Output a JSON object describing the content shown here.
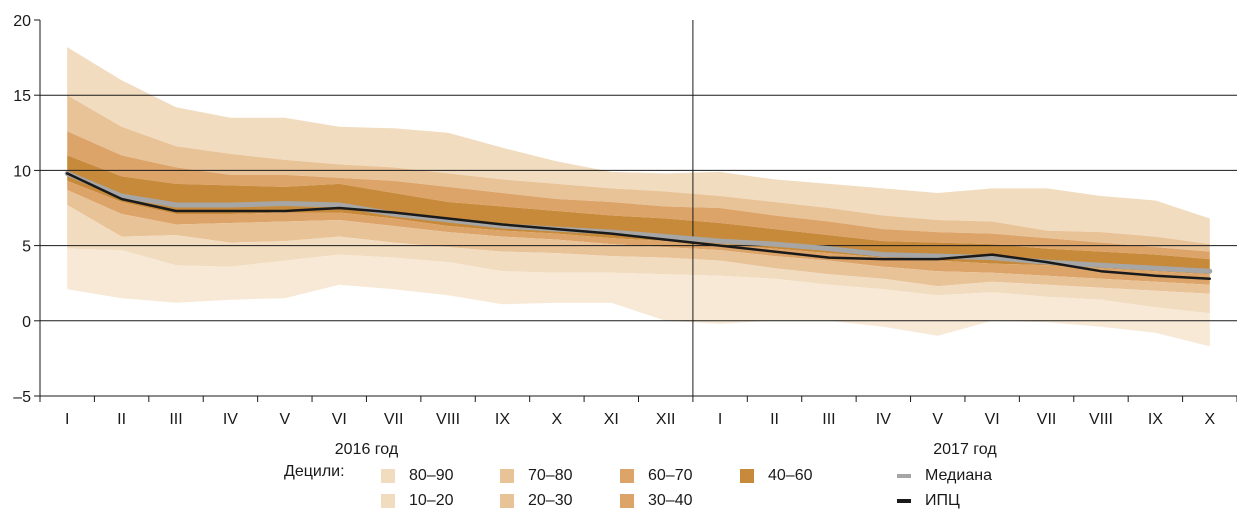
{
  "chart_data": {
    "type": "area",
    "title": "",
    "xlabel": "",
    "ylabel": "",
    "ylim": [
      -5,
      20
    ],
    "yticks": [
      -5,
      0,
      5,
      10,
      15,
      20
    ],
    "grid": true,
    "categories": [
      "I",
      "II",
      "III",
      "IV",
      "V",
      "VI",
      "VII",
      "VIII",
      "IX",
      "X",
      "XI",
      "XII",
      "I",
      "II",
      "III",
      "IV",
      "V",
      "VI",
      "VII",
      "VIII",
      "IX",
      "X"
    ],
    "year_labels": [
      {
        "label": "2016 год",
        "center_index": 5.5
      },
      {
        "label": "2017 год",
        "center_index": 16.5
      }
    ],
    "bands": [
      {
        "name": "80–90",
        "color": "#f2dcc0",
        "lower": [
          15.0,
          12.9,
          11.6,
          11.1,
          10.7,
          10.4,
          10.2,
          9.8,
          9.4,
          9.1,
          8.8,
          8.6,
          8.3,
          7.9,
          7.5,
          7.0,
          6.7,
          6.6,
          6.0,
          5.9,
          5.6,
          5.1
        ],
        "upper": [
          18.2,
          16.0,
          14.2,
          13.5,
          13.5,
          12.9,
          12.8,
          12.5,
          11.5,
          10.6,
          9.9,
          9.8,
          9.9,
          9.4,
          9.1,
          8.8,
          8.5,
          8.8,
          8.8,
          8.3,
          8.0,
          6.8
        ]
      },
      {
        "name": "70–80",
        "color": "#e9c398",
        "lower": [
          12.6,
          11.0,
          10.2,
          9.7,
          9.7,
          9.5,
          9.3,
          8.9,
          8.5,
          8.1,
          7.9,
          7.6,
          7.5,
          7.0,
          6.6,
          6.1,
          5.9,
          5.8,
          5.5,
          5.2,
          4.9,
          4.6
        ],
        "upper": [
          15.0,
          12.9,
          11.6,
          11.1,
          10.7,
          10.4,
          10.2,
          9.8,
          9.4,
          9.1,
          8.8,
          8.6,
          8.3,
          7.9,
          7.5,
          7.0,
          6.7,
          6.6,
          6.0,
          5.9,
          5.6,
          5.1
        ]
      },
      {
        "name": "60–70",
        "color": "#dda46a",
        "lower": [
          11.0,
          9.6,
          9.1,
          9.0,
          8.9,
          9.1,
          8.5,
          7.9,
          7.6,
          7.3,
          7.0,
          6.8,
          6.5,
          6.1,
          5.7,
          5.3,
          5.2,
          5.1,
          4.8,
          4.6,
          4.4,
          4.1
        ],
        "upper": [
          12.6,
          11.0,
          10.2,
          9.7,
          9.7,
          9.5,
          9.3,
          8.9,
          8.5,
          8.1,
          7.9,
          7.6,
          7.5,
          7.0,
          6.6,
          6.1,
          5.9,
          5.8,
          5.5,
          5.2,
          4.9,
          4.6
        ]
      },
      {
        "name": "40–60",
        "color": "#c78a3a",
        "lower": [
          9.3,
          7.9,
          7.1,
          7.1,
          7.2,
          7.2,
          6.8,
          6.3,
          6.0,
          5.8,
          5.5,
          5.3,
          5.1,
          4.8,
          4.5,
          4.2,
          4.0,
          3.8,
          3.7,
          3.5,
          3.3,
          3.1
        ],
        "upper": [
          11.0,
          9.6,
          9.1,
          9.0,
          8.9,
          9.1,
          8.5,
          7.9,
          7.6,
          7.3,
          7.0,
          6.8,
          6.5,
          6.1,
          5.7,
          5.3,
          5.2,
          5.1,
          4.8,
          4.6,
          4.4,
          4.1
        ]
      },
      {
        "name": "30–40",
        "color": "#dda46a",
        "lower": [
          8.7,
          7.1,
          6.4,
          6.5,
          6.6,
          6.7,
          6.3,
          5.9,
          5.6,
          5.4,
          5.1,
          4.9,
          4.7,
          4.3,
          4.0,
          3.6,
          3.3,
          3.2,
          3.0,
          2.8,
          2.6,
          2.4
        ],
        "upper": [
          9.3,
          7.9,
          7.1,
          7.1,
          7.2,
          7.2,
          6.8,
          6.3,
          6.0,
          5.8,
          5.5,
          5.3,
          5.1,
          4.8,
          4.5,
          4.2,
          4.0,
          3.8,
          3.7,
          3.5,
          3.3,
          3.1
        ]
      },
      {
        "name": "20–30",
        "color": "#e9c398",
        "lower": [
          7.7,
          5.6,
          5.7,
          5.2,
          5.3,
          5.6,
          5.2,
          4.9,
          4.6,
          4.5,
          4.3,
          4.2,
          4.0,
          3.5,
          3.1,
          2.8,
          2.3,
          2.6,
          2.4,
          2.2,
          2.0,
          1.8
        ],
        "upper": [
          8.7,
          7.1,
          6.4,
          6.5,
          6.6,
          6.7,
          6.3,
          5.9,
          5.6,
          5.4,
          5.1,
          4.9,
          4.7,
          4.3,
          4.0,
          3.6,
          3.3,
          3.2,
          3.0,
          2.8,
          2.6,
          2.4
        ]
      },
      {
        "name": "10–20",
        "color": "#f2dcc0",
        "lower": [
          4.8,
          4.7,
          3.7,
          3.6,
          4.0,
          4.4,
          4.2,
          3.9,
          3.3,
          3.2,
          3.2,
          3.1,
          3.0,
          2.8,
          2.4,
          2.1,
          1.7,
          1.9,
          1.6,
          1.4,
          0.9,
          0.5
        ],
        "upper": [
          7.7,
          5.6,
          5.7,
          5.2,
          5.3,
          5.6,
          5.2,
          4.9,
          4.6,
          4.5,
          4.3,
          4.2,
          4.0,
          3.5,
          3.1,
          2.8,
          2.3,
          2.6,
          2.4,
          2.2,
          2.0,
          1.8
        ]
      },
      {
        "name": "",
        "color": "#f7e9d6",
        "lower": [
          2.1,
          1.5,
          1.2,
          1.4,
          1.5,
          2.4,
          2.1,
          1.7,
          1.1,
          1.2,
          1.2,
          0.0,
          -0.2,
          0.0,
          0.0,
          -0.4,
          -1.0,
          0.0,
          -0.1,
          -0.4,
          -0.8,
          -1.7
        ],
        "upper": [
          4.8,
          4.7,
          3.7,
          3.6,
          4.0,
          4.4,
          4.2,
          3.9,
          3.3,
          3.2,
          3.2,
          3.1,
          3.0,
          2.8,
          2.4,
          2.1,
          1.7,
          1.9,
          1.6,
          1.4,
          0.9,
          0.5
        ]
      }
    ],
    "series": [
      {
        "name": "Медиана",
        "color": "#a6a6a6",
        "values": [
          9.8,
          8.3,
          7.7,
          7.7,
          7.8,
          7.7,
          7.1,
          6.7,
          6.3,
          6.1,
          5.9,
          5.6,
          5.3,
          5.1,
          4.8,
          4.4,
          4.3,
          4.2,
          3.9,
          3.7,
          3.5,
          3.3
        ]
      },
      {
        "name": "ИПЦ",
        "color": "#1a1a1a",
        "values": [
          9.8,
          8.1,
          7.3,
          7.3,
          7.3,
          7.5,
          7.2,
          6.8,
          6.4,
          6.1,
          5.8,
          5.4,
          5.0,
          4.6,
          4.2,
          4.1,
          4.1,
          4.4,
          3.9,
          3.3,
          3.0,
          2.8
        ]
      }
    ]
  },
  "legend": {
    "title": "Децили:",
    "items": [
      {
        "label": "80–90",
        "color": "#f2dcc0"
      },
      {
        "label": "70–80",
        "color": "#e9c398"
      },
      {
        "label": "60–70",
        "color": "#dda46a"
      },
      {
        "label": "40–60",
        "color": "#c78a3a"
      },
      {
        "label": "10–20",
        "color": "#f2dcc0"
      },
      {
        "label": "20–30",
        "color": "#e9c398"
      },
      {
        "label": "30–40",
        "color": "#dda46a"
      }
    ],
    "lines": [
      {
        "label": "Медиана",
        "color": "#a6a6a6"
      },
      {
        "label": "ИПЦ",
        "color": "#1a1a1a"
      }
    ]
  }
}
